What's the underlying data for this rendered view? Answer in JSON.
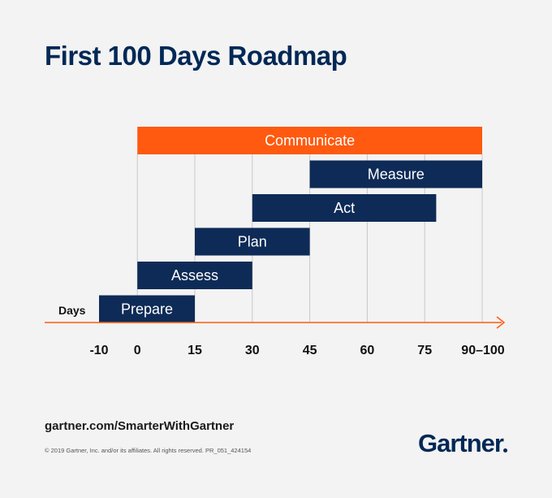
{
  "chart_data": {
    "type": "gantt",
    "title": "First 100 Days Roadmap",
    "xlabel": "Days",
    "ticks": [
      "-10",
      "0",
      "15",
      "30",
      "45",
      "60",
      "75",
      "90–100"
    ],
    "tick_values": [
      -10,
      0,
      15,
      30,
      45,
      60,
      75,
      90
    ],
    "xlim": [
      -10,
      90
    ],
    "grid": true,
    "tasks": [
      {
        "label": "Communicate",
        "start": 0,
        "end": 90,
        "color": "#ff5a0f"
      },
      {
        "label": "Measure",
        "start": 45,
        "end": 90,
        "color": "#0e2b57"
      },
      {
        "label": "Act",
        "start": 30,
        "end": 78,
        "color": "#0e2b57"
      },
      {
        "label": "Plan",
        "start": 15,
        "end": 45,
        "color": "#0e2b57"
      },
      {
        "label": "Assess",
        "start": 0,
        "end": 30,
        "color": "#0e2b57"
      },
      {
        "label": "Prepare",
        "start": -10,
        "end": 15,
        "color": "#0e2b57"
      }
    ],
    "axis_color": "#ff5a0f"
  },
  "footer": {
    "url": "gartner.com/SmarterWithGartner",
    "copyright": "© 2019 Gartner, Inc. and/or its affiliates. All rights reserved. PR_051_424154",
    "logo_text": "Gartner"
  }
}
